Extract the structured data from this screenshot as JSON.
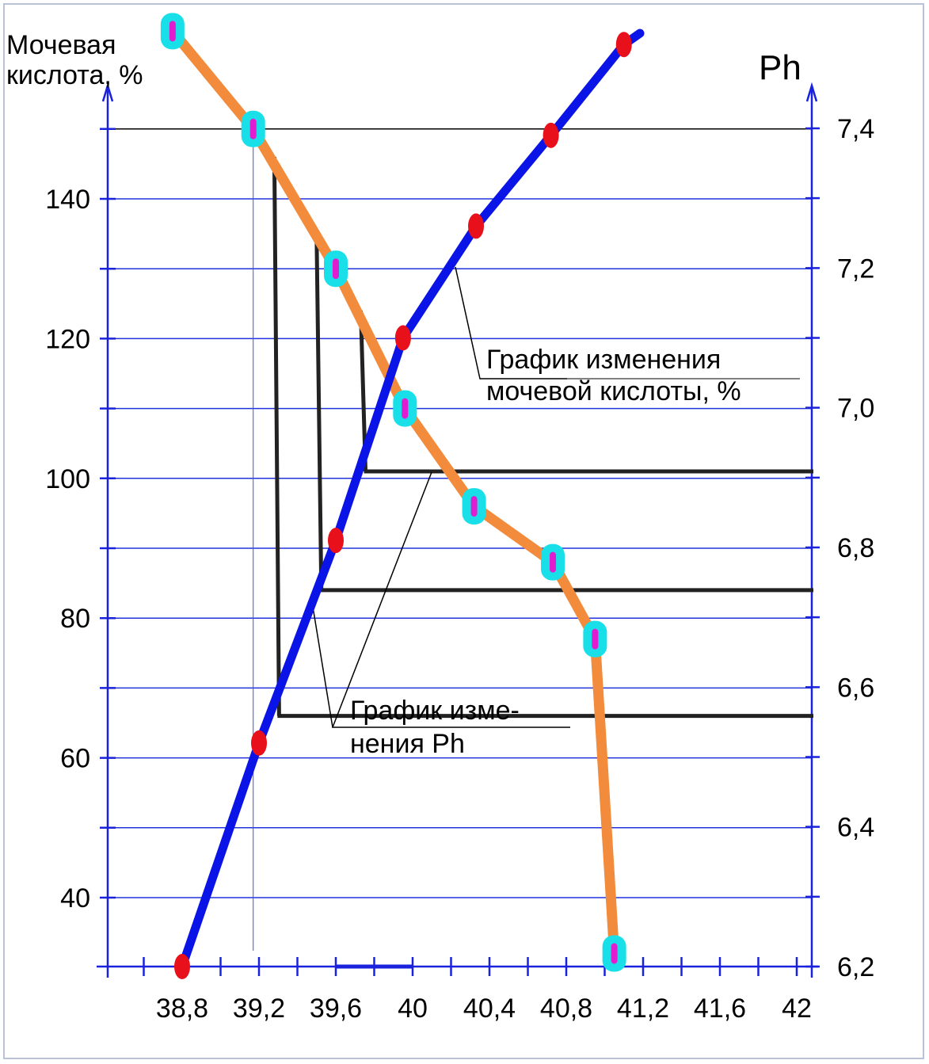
{
  "chart_data": {
    "type": "line",
    "y_left_title_line1": "Мочевая",
    "y_left_title_line2": "кислота, %",
    "y_right_title": "Ph",
    "x_ticks": [
      "38,8",
      "39,2",
      "39,6",
      "40",
      "40,4",
      "40,8",
      "41,2",
      "41,6",
      "42"
    ],
    "y_left_ticks": [
      "140",
      "120",
      "100",
      "80",
      "60",
      "40"
    ],
    "y_left_tick_values": [
      140,
      120,
      100,
      80,
      60,
      40
    ],
    "y_right_ticks": [
      "7,4",
      "7,2",
      "7,0",
      "6,8",
      "6,6",
      "6,4",
      "6,2"
    ],
    "y_right_tick_values": [
      7.4,
      7.2,
      7.0,
      6.8,
      6.6,
      6.4,
      6.2
    ],
    "x_tick_values": [
      38.8,
      39.2,
      39.6,
      40.0,
      40.4,
      40.8,
      41.2,
      41.6,
      42.0
    ],
    "xlim": [
      38.4,
      42.15
    ],
    "ylim_left": [
      30,
      170
    ],
    "ylim_right": [
      6.2,
      7.4
    ],
    "grid": true,
    "series": [
      {
        "key": "uric_acid",
        "color": "#f28c3c",
        "marker": "#19e0e8",
        "marker_inner": "#e11ecf",
        "x": [
          38.75,
          39.17,
          39.6,
          39.96,
          40.32,
          40.73,
          40.95,
          41.05
        ],
        "y": [
          164,
          150,
          130,
          110,
          96,
          88,
          77,
          32
        ]
      },
      {
        "key": "ph",
        "color": "#0a14e6",
        "marker": "#e8101a",
        "x": [
          38.8,
          39.2,
          39.6,
          39.95,
          40.33,
          40.72,
          41.1
        ],
        "y_right": [
          6.2,
          6.52,
          6.81,
          7.1,
          7.26,
          7.39,
          7.52
        ]
      }
    ],
    "annotations": [
      {
        "key": "uric",
        "line1": "График изменения",
        "line2": "мочевой кислоты, %"
      },
      {
        "key": "ph",
        "line1": "График изме-",
        "line2": "нения Ph"
      }
    ],
    "projection_lines": [
      {
        "x": 39.28,
        "y_top": 146,
        "y_bottom": 66
      },
      {
        "x": 39.5,
        "y_top": 135,
        "y_bottom": 84
      },
      {
        "x": 39.73,
        "y_top": 124,
        "y_bottom": 101
      }
    ]
  }
}
